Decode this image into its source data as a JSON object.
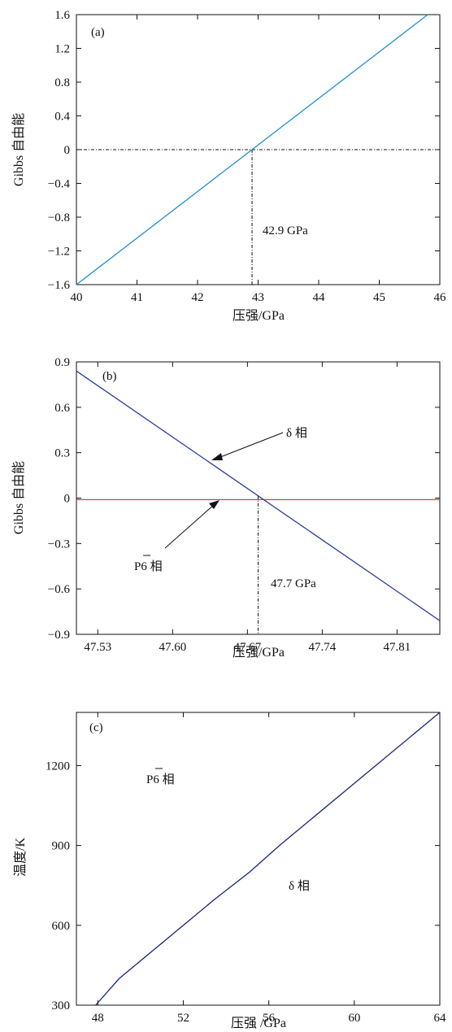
{
  "chart_data": [
    {
      "panel": "(a)",
      "type": "line",
      "xlabel": "压强/GPa",
      "ylabel": "Gibbs 自由能",
      "xlim": [
        40,
        46
      ],
      "ylim": [
        -1.6,
        1.6
      ],
      "xticks": [
        "40",
        "41",
        "42",
        "43",
        "44",
        "45",
        "46"
      ],
      "yticks": [
        "−1.6",
        "−1.2",
        "−0.8",
        "−0.4",
        "0",
        "0.4",
        "0.8",
        "1.2",
        "1.6"
      ],
      "series": [
        {
          "color": "#1f8fd0",
          "x": [
            40.0,
            45.8
          ],
          "y": [
            -1.6,
            1.6
          ]
        }
      ],
      "reference_lines": {
        "horizontal_y": 0,
        "vertical_x": 42.9
      },
      "annotations": [
        {
          "text": "42.9 GPa"
        }
      ],
      "grid": false
    },
    {
      "panel": "(b)",
      "type": "line",
      "xlabel": "压强/GPa",
      "ylabel": "Gibbs 自由能",
      "xlim": [
        47.51,
        47.85
      ],
      "ylim": [
        -0.9,
        0.9
      ],
      "xticks": [
        "47.53",
        "47.60",
        "47.67",
        "47.74",
        "47.81"
      ],
      "xtick_values": [
        47.53,
        47.6,
        47.67,
        47.74,
        47.81
      ],
      "yticks": [
        "−0.9",
        "−0.6",
        "−0.3",
        "0",
        "0.3",
        "0.6",
        "0.9"
      ],
      "series": [
        {
          "color": "#2a3d9c",
          "x": [
            47.51,
            47.85
          ],
          "y": [
            0.84,
            -0.81
          ]
        },
        {
          "color": "#e03a3a",
          "x": [
            47.51,
            47.85
          ],
          "y": [
            -0.01,
            -0.01
          ]
        }
      ],
      "reference_lines": {
        "vertical_x": 47.68
      },
      "annotations": [
        {
          "text": "δ 相"
        },
        {
          "text_main": "P",
          "text_overline": "6",
          "text_suffix": " 相"
        },
        {
          "text": "47.7 GPa"
        }
      ],
      "grid": false
    },
    {
      "panel": "(c)",
      "type": "line",
      "xlabel": "压强 /GPa",
      "ylabel": "温度/K",
      "xlim": [
        47,
        64
      ],
      "ylim": [
        300,
        1400
      ],
      "xticks": [
        "48",
        "52",
        "56",
        "60",
        "64"
      ],
      "xtick_values": [
        48,
        52,
        56,
        60,
        64
      ],
      "yticks": [
        "300",
        "600",
        "900",
        "1200"
      ],
      "ytick_values": [
        300,
        600,
        900,
        1200
      ],
      "series": [
        {
          "color": "#1a237e",
          "x": [
            47.9,
            49.0,
            52.0,
            53.5,
            55.1,
            56.5,
            64.0
          ],
          "y": [
            300,
            400,
            600,
            700,
            800,
            900,
            1400
          ]
        }
      ],
      "annotations": [
        {
          "text_main": "P",
          "text_overline": "6",
          "text_suffix": " 相"
        },
        {
          "text": "δ 相"
        }
      ],
      "grid": false
    }
  ]
}
